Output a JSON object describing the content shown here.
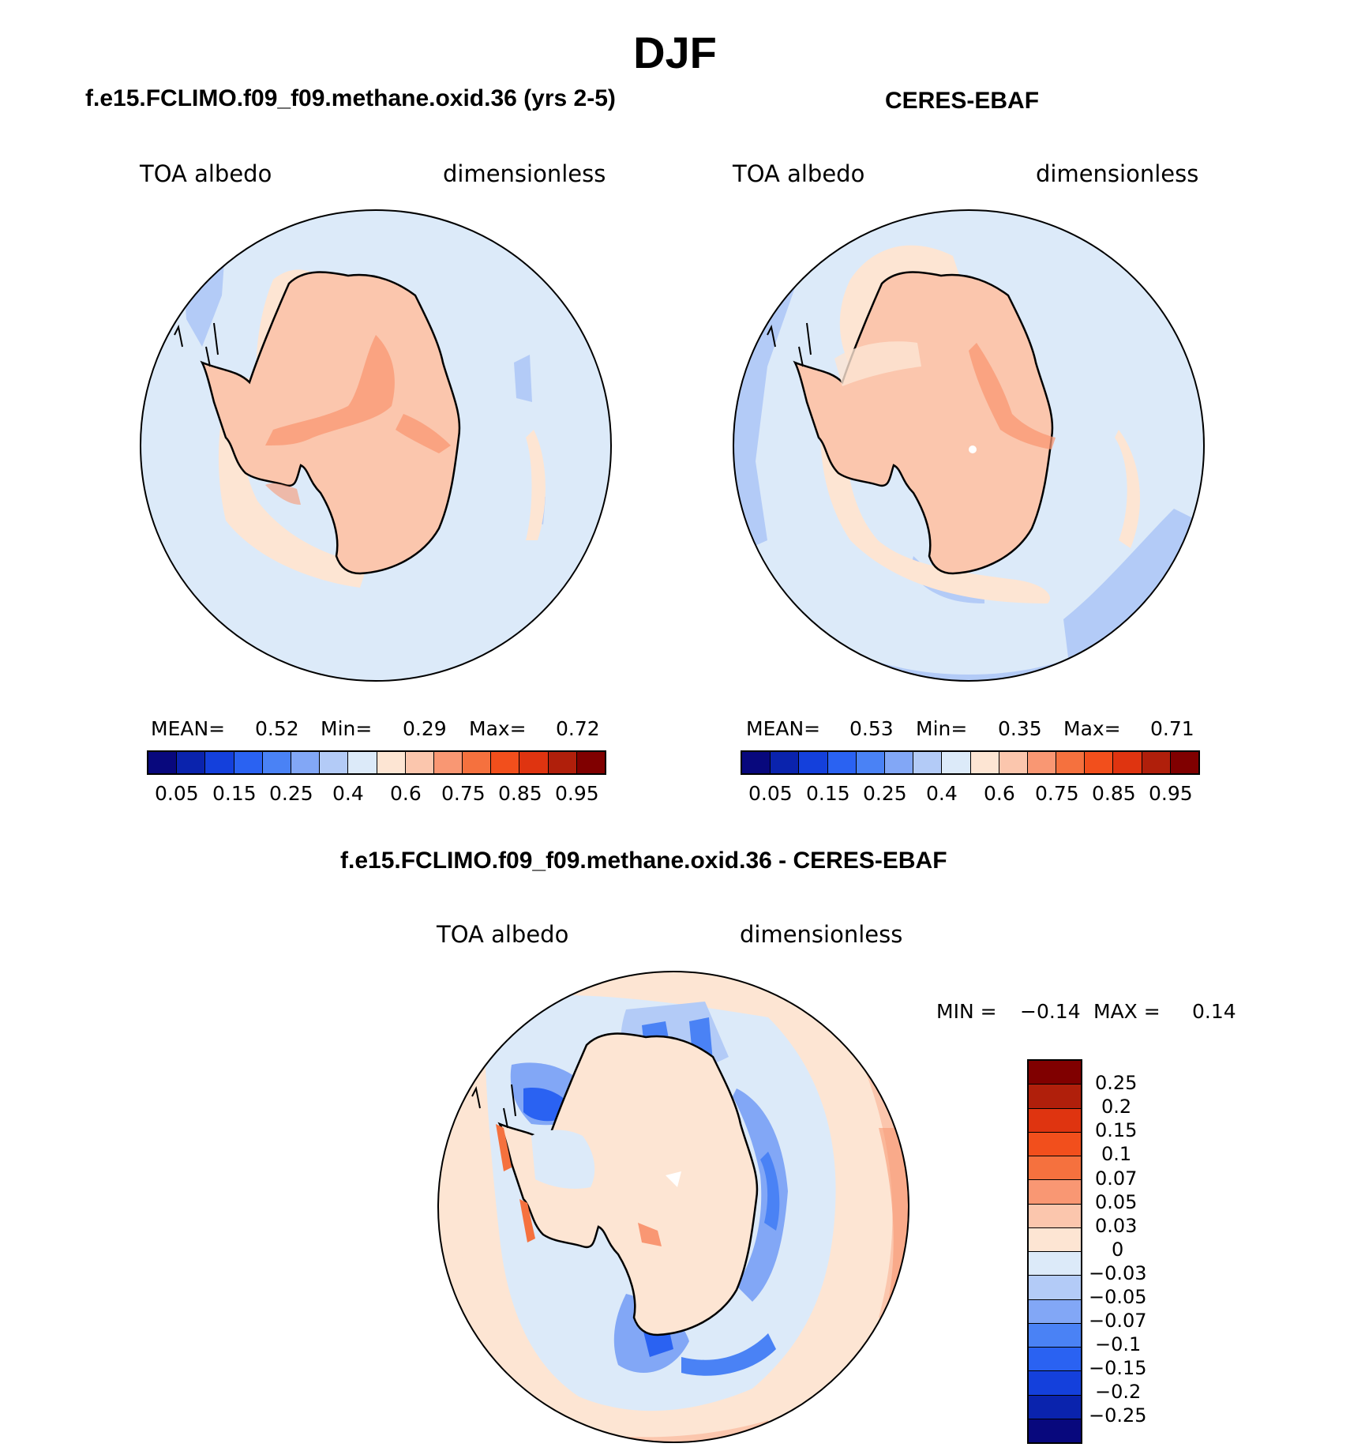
{
  "title": "DJF",
  "panels": [
    {
      "subtitle": "f.e15.FCLIMO.f09_f09.methane.oxid.36 (yrs 2-5)",
      "variable": "TOA albedo",
      "units": "dimensionless",
      "stats": {
        "mean_label": "MEAN=",
        "mean": "0.52",
        "min_label": "Min=",
        "min": "0.29",
        "max_label": "Max=",
        "max": "0.72"
      }
    },
    {
      "subtitle": "CERES-EBAF",
      "variable": "TOA albedo",
      "units": "dimensionless",
      "stats": {
        "mean_label": "MEAN=",
        "mean": "0.53",
        "min_label": "Min=",
        "min": "0.35",
        "max_label": "Max=",
        "max": "0.71"
      }
    },
    {
      "subtitle": "f.e15.FCLIMO.f09_f09.methane.oxid.36 - CERES-EBAF",
      "variable": "TOA albedo",
      "units": "dimensionless",
      "minmax": {
        "min_label": "MIN =",
        "min": "−0.14",
        "max_label": "MAX =",
        "max": "0.14"
      }
    }
  ],
  "colorbar_abs": {
    "colors": [
      "#08087d",
      "#0a23ad",
      "#1440dc",
      "#2a62f2",
      "#4a82f5",
      "#82a7f6",
      "#b3cbf7",
      "#dceaf9",
      "#fde5d3",
      "#fbc6ad",
      "#f99773",
      "#f5713e",
      "#f24f1c",
      "#df3410",
      "#b01f0b",
      "#800000"
    ],
    "labels": [
      "0.05",
      "0.15",
      "0.25",
      "0.4",
      "0.6",
      "0.75",
      "0.85",
      "0.95"
    ]
  },
  "colorbar_diff": {
    "colors": [
      "#800000",
      "#b01f0b",
      "#df3410",
      "#f24f1c",
      "#f5713e",
      "#f99773",
      "#fbc6ad",
      "#fde5d3",
      "#dceaf9",
      "#b3cbf7",
      "#82a7f6",
      "#4a82f5",
      "#2a62f2",
      "#1440dc",
      "#0a23ad",
      "#08087d"
    ],
    "labels": [
      "0.25",
      "0.2",
      "0.15",
      "0.1",
      "0.07",
      "0.05",
      "0.03",
      "0",
      "−0.03",
      "−0.05",
      "−0.07",
      "−0.1",
      "−0.15",
      "−0.2",
      "−0.25"
    ]
  }
}
